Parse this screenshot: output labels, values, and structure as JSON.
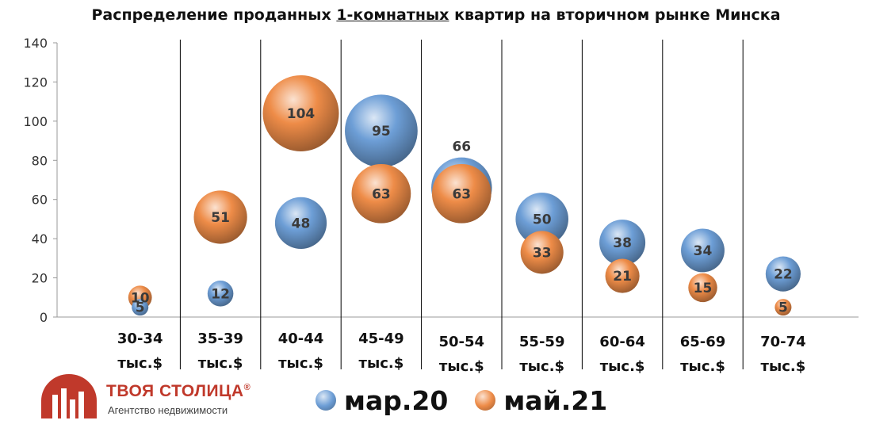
{
  "title": {
    "prefix": "Распределение проданных ",
    "underlined": "1-комнатных",
    "suffix": " квартир на вторичном рынке Минска"
  },
  "logo": {
    "name": "ТВОЯ СТОЛИЦА",
    "registered_mark": "®",
    "tagline": "Агентство недвижимости"
  },
  "colors": {
    "mar20": "#6d9ed6",
    "may21": "#ee8c48"
  },
  "chart_data": {
    "type": "bubble",
    "categories": [
      [
        "30-34",
        "тыс.$"
      ],
      [
        "35-39",
        "тыс.$"
      ],
      [
        "40-44",
        "тыс.$"
      ],
      [
        "45-49",
        "тыс.$"
      ],
      [
        "50-54",
        "тыс.$"
      ],
      [
        "55-59",
        "тыс.$"
      ],
      [
        "60-64",
        "тыс.$"
      ],
      [
        "65-69",
        "тыс.$"
      ],
      [
        "70-74",
        "тыс.$"
      ]
    ],
    "series": [
      {
        "name": "мар.20",
        "values": [
          5,
          12,
          48,
          95,
          66,
          50,
          38,
          34,
          22
        ]
      },
      {
        "name": "май.21",
        "values": [
          10,
          51,
          104,
          63,
          63,
          33,
          21,
          15,
          5
        ]
      }
    ],
    "ylim": [
      0,
      140
    ],
    "yticks": [
      0,
      20,
      40,
      60,
      80,
      100,
      120,
      140
    ],
    "bubble_size": "proportional to value",
    "grid": false,
    "category_separators": true,
    "legend_position": "bottom"
  }
}
